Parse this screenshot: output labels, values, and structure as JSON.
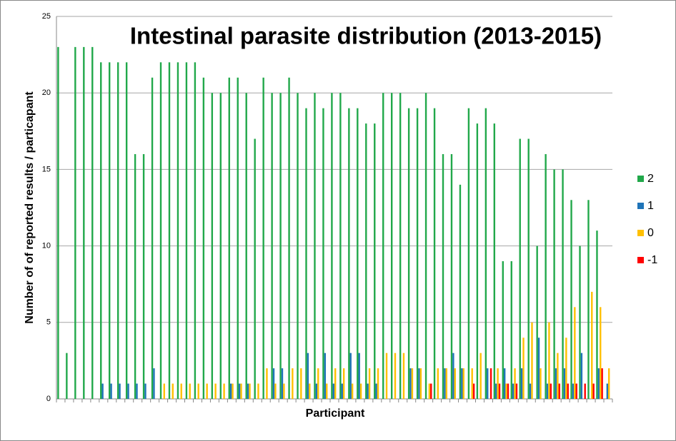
{
  "chart_data": {
    "type": "bar",
    "title": "Intestinal parasite distribution (2013-2015)",
    "x_label": "Participant",
    "y_label": "Number of of reported results / particapant",
    "categories": [
      null,
      null,
      null,
      null,
      null,
      null,
      null,
      null,
      null,
      null,
      null,
      null,
      null,
      null,
      null,
      null,
      null,
      null,
      null,
      null,
      null,
      null,
      null,
      null,
      null,
      null,
      null,
      null,
      null,
      null,
      null,
      null,
      null,
      null,
      null,
      null,
      null,
      null,
      null,
      null,
      null,
      null,
      null,
      null,
      null,
      null,
      null,
      null,
      null,
      null,
      null,
      null,
      null,
      null,
      null,
      null,
      null,
      null,
      null,
      null,
      null,
      null,
      null,
      null,
      null
    ],
    "series": [
      {
        "name": "2",
        "color": "#21a84a",
        "values": [
          23,
          3,
          23,
          23,
          23,
          22,
          22,
          22,
          22,
          16,
          16,
          21,
          22,
          22,
          22,
          22,
          22,
          21,
          20,
          20,
          21,
          21,
          20,
          17,
          21,
          20,
          20,
          21,
          20,
          19,
          20,
          19,
          20,
          20,
          19,
          19,
          18,
          18,
          20,
          20,
          20,
          19,
          19,
          20,
          19,
          16,
          16,
          14,
          19,
          18,
          19,
          18,
          9,
          9,
          17,
          17,
          10,
          16,
          15,
          15,
          13,
          10,
          13,
          11,
          0
        ]
      },
      {
        "name": "1",
        "color": "#1f74b8",
        "values": [
          0,
          0,
          0,
          0,
          0,
          1,
          1,
          1,
          1,
          1,
          1,
          2,
          0,
          0,
          0,
          0,
          0,
          0,
          0,
          0,
          1,
          1,
          1,
          0,
          0,
          2,
          2,
          0,
          0,
          3,
          1,
          3,
          1,
          1,
          3,
          3,
          1,
          1,
          0,
          0,
          0,
          2,
          2,
          0,
          0,
          2,
          3,
          2,
          0,
          0,
          2,
          1,
          2,
          1,
          2,
          1,
          4,
          1,
          2,
          2,
          1,
          3,
          0,
          2,
          1
        ]
      },
      {
        "name": "0",
        "color": "#ffc000",
        "values": [
          0,
          0,
          0,
          0,
          0,
          0,
          0,
          0,
          0,
          0,
          0,
          0,
          1,
          1,
          1,
          1,
          1,
          1,
          1,
          1,
          1,
          1,
          1,
          1,
          2,
          1,
          1,
          2,
          2,
          1,
          2,
          1,
          2,
          2,
          1,
          1,
          2,
          2,
          3,
          3,
          3,
          2,
          2,
          1,
          2,
          2,
          2,
          2,
          2,
          3,
          0,
          2,
          1,
          2,
          4,
          5,
          2,
          5,
          3,
          4,
          6,
          0,
          7,
          6,
          2
        ]
      },
      {
        "name": "-1",
        "color": "#ff0000",
        "values": [
          0,
          0,
          0,
          0,
          0,
          0,
          0,
          0,
          0,
          0,
          0,
          0,
          0,
          0,
          0,
          0,
          0,
          0,
          0,
          0,
          0,
          0,
          0,
          0,
          0,
          0,
          0,
          0,
          0,
          0,
          0,
          0,
          0,
          0,
          0,
          0,
          0,
          0,
          0,
          0,
          0,
          0,
          0,
          1,
          0,
          0,
          0,
          0,
          1,
          0,
          2,
          1,
          1,
          1,
          0,
          0,
          0,
          1,
          1,
          1,
          1,
          1,
          1,
          2,
          0
        ]
      }
    ],
    "ylim": [
      0,
      25
    ],
    "yticks": [
      0,
      5,
      10,
      15,
      20,
      25
    ],
    "grid": true,
    "legend": "right"
  }
}
